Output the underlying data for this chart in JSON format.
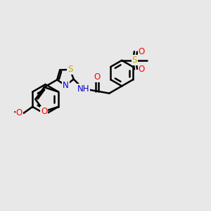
{
  "bg_color": "#e8e8e8",
  "bond_color": "#000000",
  "bond_width": 1.8,
  "atom_colors": {
    "O": "#ff0000",
    "N": "#0000cc",
    "S": "#ccaa00",
    "C": "#000000",
    "H": "#000000"
  },
  "font_size": 8.5,
  "fig_size": [
    3.0,
    3.0
  ],
  "dpi": 100
}
